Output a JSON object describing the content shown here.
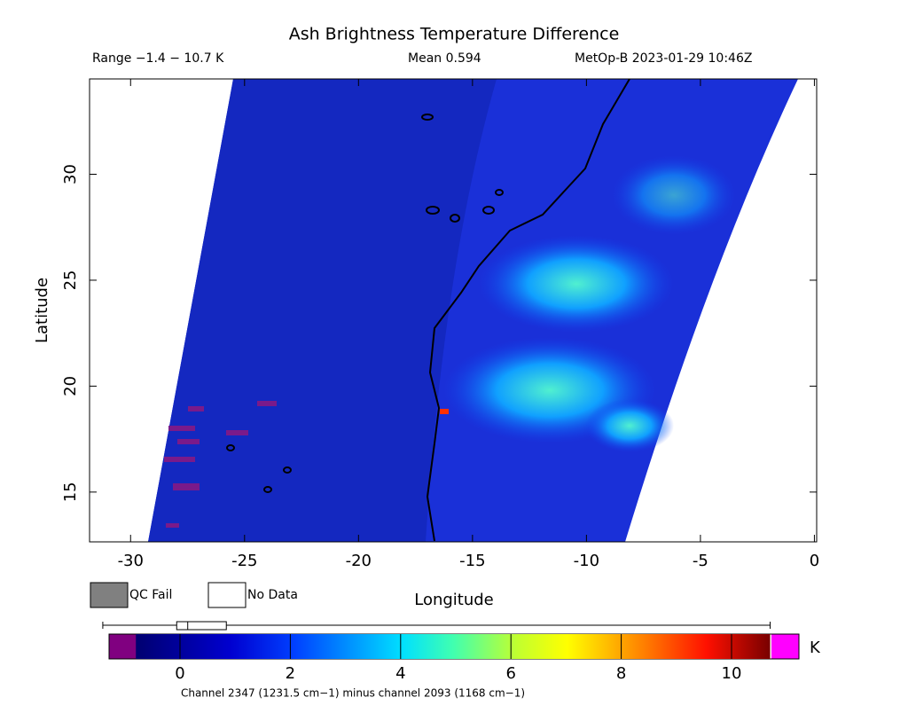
{
  "chart_data": {
    "type": "swath",
    "title": "Ash Brightness Temperature Difference",
    "range_text": "Range −1.4 − 10.7 K",
    "mean_text": "Mean 0.594",
    "source_text": "MetOp-B 2023-01-29 10:46Z",
    "x_label": "Longitude",
    "y_label": "Latitude",
    "xlim": [
      -31.8,
      0.1
    ],
    "xticks": [
      -30,
      -25,
      -20,
      -15,
      -10,
      -5,
      0
    ],
    "ylim": [
      12.65,
      34.5
    ],
    "yticks": [
      15,
      20,
      25,
      30
    ],
    "legend": [
      "QC Fail",
      "No Data"
    ],
    "colorbar": {
      "clim": [
        -0.8,
        10.7
      ],
      "ticks": [
        0,
        2,
        4,
        6,
        8,
        10
      ],
      "unit": "K",
      "caption": "Channel 2347 (1231.5 cm−1) minus channel 2093 (1168 cm−1)"
    },
    "boxplot": {
      "min": -1.4,
      "q1": -0.06,
      "median": 0.14,
      "q3": 0.84,
      "max": 10.7
    }
  }
}
